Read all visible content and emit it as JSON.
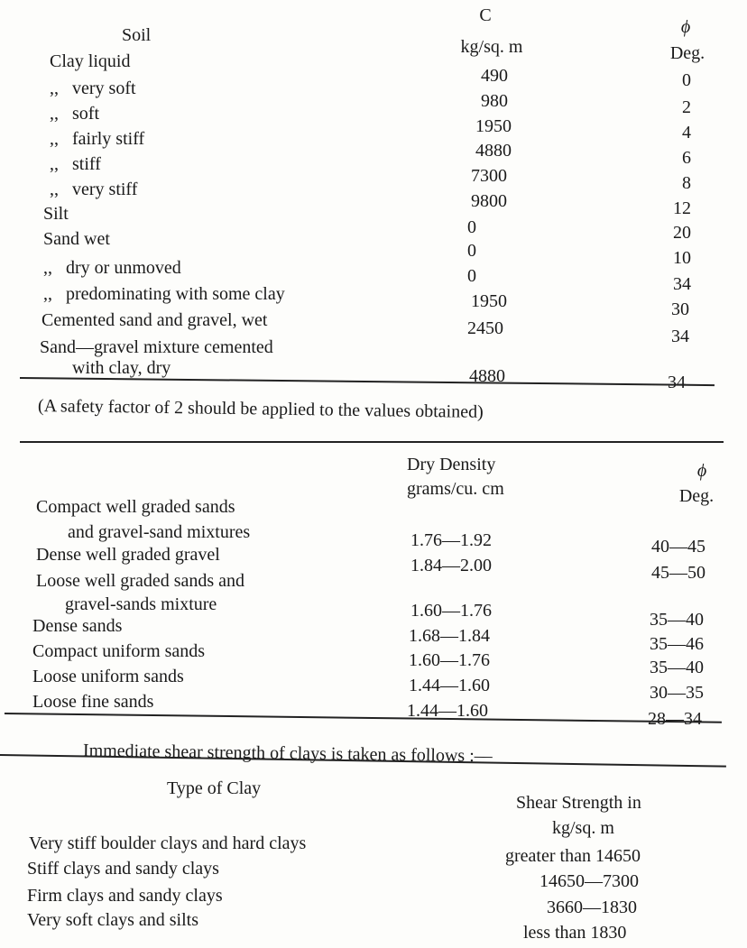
{
  "table1": {
    "headers": {
      "soil": "Soil",
      "c_symbol": "C",
      "c_unit": "kg/sq. m",
      "phi_symbol": "ϕ",
      "phi_unit": "Deg."
    },
    "rows": [
      {
        "soil": "Clay liquid",
        "c": "490",
        "phi": "0"
      },
      {
        "soil": ",,   very soft",
        "c": "980",
        "phi": "2"
      },
      {
        "soil": ",,   soft",
        "c": "1950",
        "phi": "4"
      },
      {
        "soil": ",,   fairly stiff",
        "c": "4880",
        "phi": "6"
      },
      {
        "soil": ",,   stiff",
        "c": "7300",
        "phi": "8"
      },
      {
        "soil": ",,   very stiff",
        "c": "9800",
        "phi": "12"
      },
      {
        "soil": "Silt",
        "c": "0",
        "phi": "20"
      },
      {
        "soil": "Sand wet",
        "c": "0",
        "phi": "10"
      },
      {
        "soil": ",,   dry or unmoved",
        "c": "0",
        "phi": "34"
      },
      {
        "soil": ",,   predominating with some clay",
        "c": "1950",
        "phi": "30"
      },
      {
        "soil": "Cemented sand and gravel, wet",
        "c": "2450",
        "phi": "34"
      },
      {
        "soil": "Sand—gravel mixture cemented",
        "soil_line2": "with clay, dry",
        "c": "4880",
        "phi": "34"
      }
    ],
    "note": "(A safety factor of 2 should be applied to the values obtained)"
  },
  "table2": {
    "headers": {
      "density": "Dry Density",
      "density_unit": "grams/cu. cm",
      "phi_symbol": "ϕ",
      "phi_unit": "Deg."
    },
    "rows": [
      {
        "soil": "Compact well graded sands",
        "soil_line2": "and gravel-sand mixtures",
        "density": "1.76—1.92",
        "phi": "40—45"
      },
      {
        "soil": "Dense well graded gravel",
        "density": "1.84—2.00",
        "phi": "45—50"
      },
      {
        "soil": "Loose well graded sands and",
        "soil_line2": "gravel-sands mixture",
        "density": "1.60—1.76",
        "phi": "35—40"
      },
      {
        "soil": "Dense sands",
        "density": "1.68—1.84",
        "phi": "35—46"
      },
      {
        "soil": "Compact uniform sands",
        "density": "1.60—1.76",
        "phi": "35—40"
      },
      {
        "soil": "Loose uniform sands",
        "density": "1.44—1.60",
        "phi": "30—35"
      },
      {
        "soil": "Loose fine sands",
        "density": "1.44—1.60",
        "phi": "28—34"
      }
    ]
  },
  "table3": {
    "intro": "Immediate shear strength of clays is taken as follows :—",
    "headers": {
      "type": "Type of Clay",
      "strength": "Shear Strength in",
      "strength_unit": "kg/sq. m"
    },
    "rows": [
      {
        "type": "Very stiff boulder clays and hard clays",
        "strength": "greater than 14650"
      },
      {
        "type": "Stiff clays and sandy clays",
        "strength": "14650—7300"
      },
      {
        "type": "Firm clays and sandy clays",
        "strength": "3660—1830"
      },
      {
        "type": "Very soft clays and silts",
        "strength": "less than 1830"
      }
    ]
  }
}
